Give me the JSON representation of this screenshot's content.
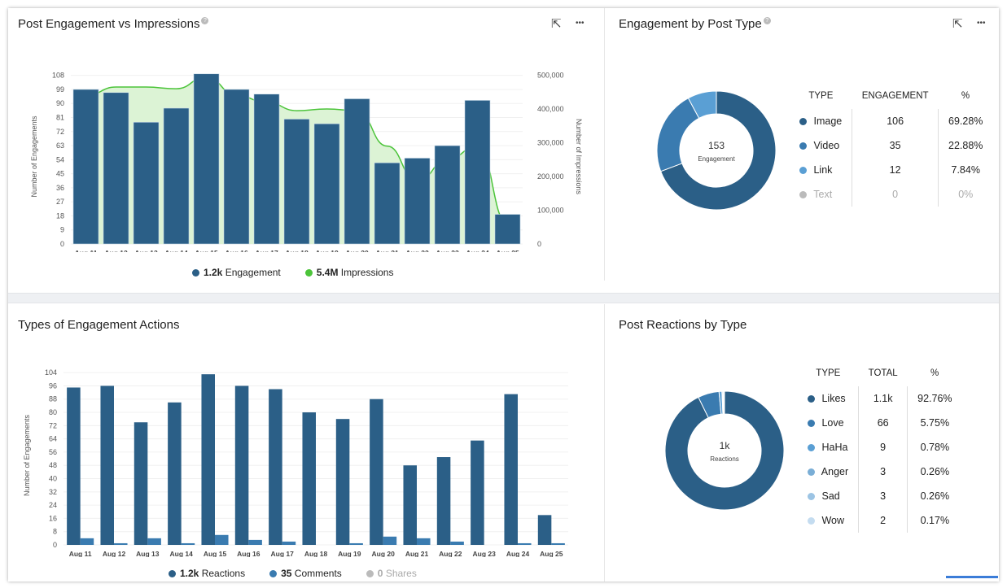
{
  "panels": {
    "p1": {
      "title": "Post Engagement vs Impressions",
      "help": "?",
      "expand_icon": "external-link-icon",
      "more_icon": "more-icon"
    },
    "p2": {
      "title": "Engagement by Post Type",
      "help": "?",
      "expand_icon": "external-link-icon",
      "more_icon": "more-icon"
    },
    "p3": {
      "title": "Types of Engagement Actions"
    },
    "p4": {
      "title": "Post Reactions by Type"
    }
  },
  "icons": {
    "expand": "⇱",
    "more": "•••"
  },
  "chart_data": [
    {
      "type": "bar",
      "title": "Post Engagement vs Impressions",
      "categories": [
        "Aug 11",
        "Aug 12",
        "Aug 13",
        "Aug 14",
        "Aug 15",
        "Aug 16",
        "Aug 17",
        "Aug 18",
        "Aug 19",
        "Aug 20",
        "Aug 21",
        "Aug 22",
        "Aug 23",
        "Aug 24",
        "Aug 25"
      ],
      "ylabel": "Number of Engagements",
      "y2label": "Number of Impressions",
      "yticks": [
        0,
        9,
        18,
        27,
        36,
        45,
        54,
        63,
        72,
        81,
        90,
        99,
        108
      ],
      "ylim": [
        0,
        112
      ],
      "y2ticks": [
        "0",
        "100,000",
        "200,000",
        "300,000",
        "400,000",
        "500,000"
      ],
      "y2lim": [
        0,
        500000
      ],
      "series": [
        {
          "name": "Engagement",
          "kind": "bar",
          "color": "#2b5f87",
          "values": [
            99,
            97,
            78,
            87,
            109,
            99,
            96,
            80,
            77,
            93,
            52,
            55,
            63,
            92,
            19
          ]
        },
        {
          "name": "Impressions",
          "kind": "area",
          "color": "#4cc43a",
          "values": [
            440000,
            465000,
            465000,
            460000,
            495000,
            440000,
            420000,
            395000,
            400000,
            395000,
            290000,
            185000,
            250000,
            290000,
            60000
          ]
        }
      ],
      "legend": [
        {
          "value": "1.2k",
          "label": "Engagement",
          "color": "#2b5f87"
        },
        {
          "value": "5.4M",
          "label": "Impressions",
          "color": "#4cc43a"
        }
      ],
      "legend_position": "bottom",
      "grid": true
    },
    {
      "type": "pie",
      "title": "Engagement by Post Type",
      "center_value": "153",
      "center_label": "Engagement",
      "headers": [
        "TYPE",
        "ENGAGEMENT",
        "%"
      ],
      "rows": [
        {
          "type": "Image",
          "value": "106",
          "pct": "69.28%",
          "color": "#2b5f87"
        },
        {
          "type": "Video",
          "value": "35",
          "pct": "22.88%",
          "color": "#3a7bb0"
        },
        {
          "type": "Link",
          "value": "12",
          "pct": "7.84%",
          "color": "#5a9fd4"
        },
        {
          "type": "Text",
          "value": "0",
          "pct": "0%",
          "color": "#bbbbbb"
        }
      ]
    },
    {
      "type": "bar",
      "title": "Types of Engagement Actions",
      "categories": [
        "Aug 11",
        "Aug 12",
        "Aug 13",
        "Aug 14",
        "Aug 15",
        "Aug 16",
        "Aug 17",
        "Aug 18",
        "Aug 19",
        "Aug 20",
        "Aug 21",
        "Aug 22",
        "Aug 23",
        "Aug 24",
        "Aug 25"
      ],
      "ylabel": "Number of Engagements",
      "yticks": [
        0,
        8,
        16,
        24,
        32,
        40,
        48,
        56,
        64,
        72,
        80,
        88,
        96,
        104
      ],
      "ylim": [
        0,
        108
      ],
      "series": [
        {
          "name": "Reactions",
          "color": "#2b5f87",
          "values": [
            95,
            96,
            74,
            86,
            103,
            96,
            94,
            80,
            76,
            88,
            48,
            53,
            63,
            91,
            18
          ]
        },
        {
          "name": "Comments",
          "color": "#3a7bb0",
          "values": [
            4,
            1,
            4,
            1,
            6,
            3,
            2,
            0,
            1,
            5,
            4,
            2,
            0,
            1,
            1
          ]
        },
        {
          "name": "Shares",
          "color": "#bbbbbb",
          "values": [
            0,
            0,
            0,
            0,
            0,
            0,
            0,
            0,
            0,
            0,
            0,
            0,
            0,
            0,
            0
          ]
        }
      ],
      "legend": [
        {
          "value": "1.2k",
          "label": "Reactions",
          "color": "#2b5f87"
        },
        {
          "value": "35",
          "label": "Comments",
          "color": "#3a7bb0"
        },
        {
          "value": "0",
          "label": "Shares",
          "color": "#bbbbbb"
        }
      ],
      "legend_position": "bottom",
      "grid": true
    },
    {
      "type": "pie",
      "title": "Post Reactions by Type",
      "center_value": "1k",
      "center_label": "Reactions",
      "headers": [
        "TYPE",
        "TOTAL",
        "%"
      ],
      "rows": [
        {
          "type": "Likes",
          "value": "1.1k",
          "pct": "92.76%",
          "color": "#2b5f87",
          "raw": 1062
        },
        {
          "type": "Love",
          "value": "66",
          "pct": "5.75%",
          "color": "#3a7bb0",
          "raw": 66
        },
        {
          "type": "HaHa",
          "value": "9",
          "pct": "0.78%",
          "color": "#5a9fd4",
          "raw": 9
        },
        {
          "type": "Anger",
          "value": "3",
          "pct": "0.26%",
          "color": "#7aaed6",
          "raw": 3
        },
        {
          "type": "Sad",
          "value": "3",
          "pct": "0.26%",
          "color": "#9cc4e4",
          "raw": 3
        },
        {
          "type": "Wow",
          "value": "2",
          "pct": "0.17%",
          "color": "#c4dcf0",
          "raw": 2
        }
      ]
    }
  ]
}
